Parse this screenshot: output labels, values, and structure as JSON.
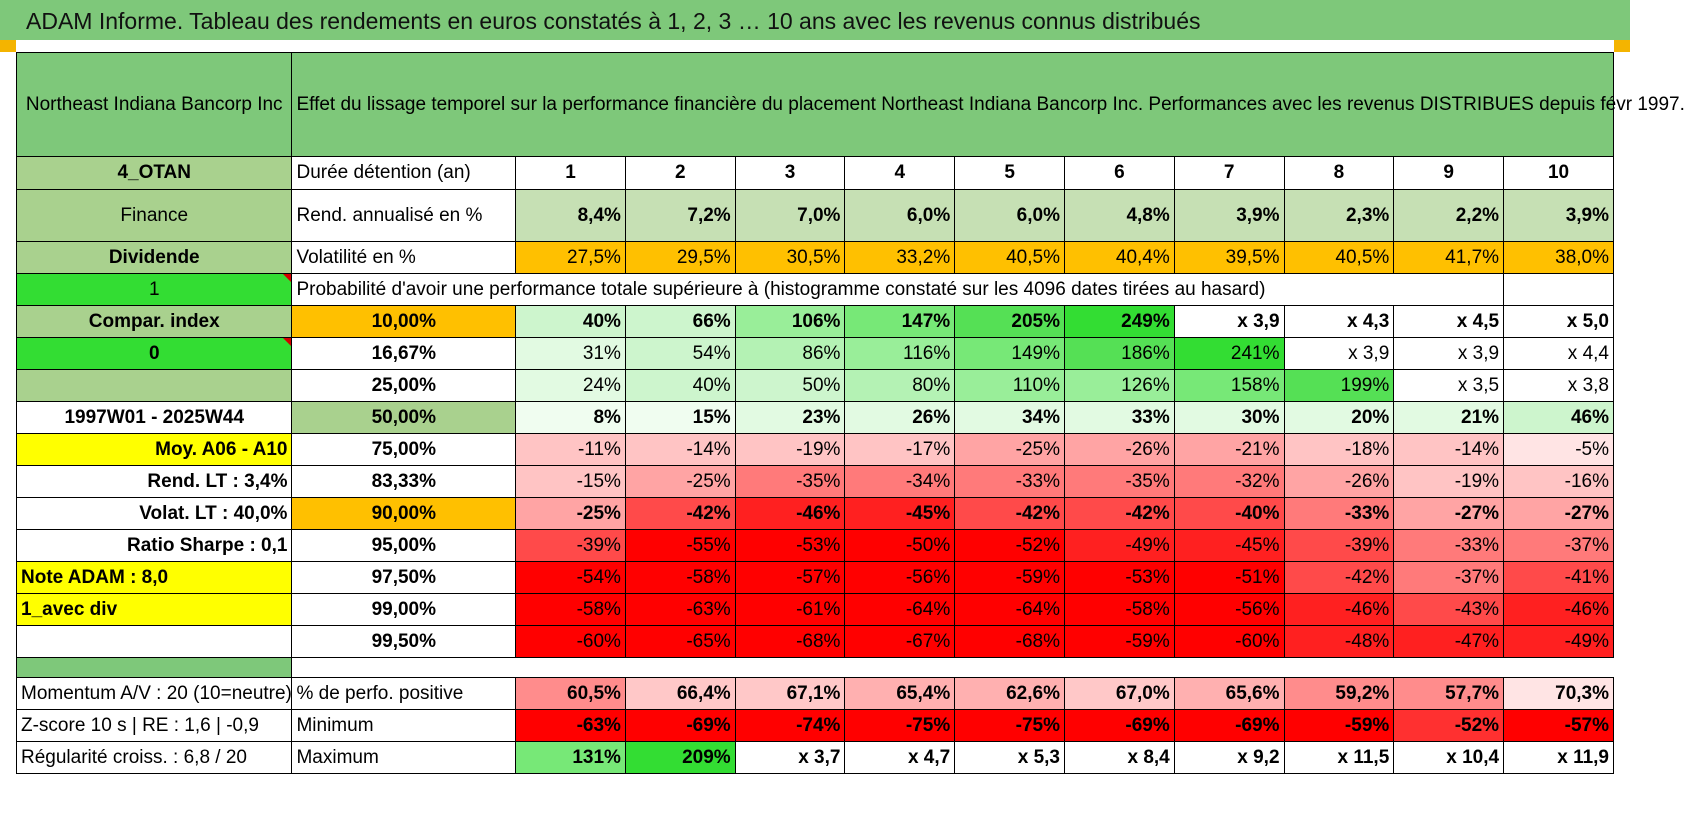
{
  "header": {
    "title": "ADAM Informe. Tableau des rendements en euros constatés à 1, 2, 3 … 10 ans avec les revenus connus distribués"
  },
  "company": {
    "name": "Northeast Indiana Bancorp Inc",
    "description": "Effet du lissage temporel sur la performance financière du placement Northeast Indiana Bancorp Inc. Performances avec les revenus DISTRIBUES depuis févr 1997."
  },
  "side": {
    "code": "4_OTAN",
    "sector": "Finance",
    "type": "Dividende",
    "flag1": "1",
    "compar": "Compar. index",
    "flag0": "0",
    "period": "1997W01 - 2025W44",
    "moy": "Moy. A06 - A10",
    "rend_lt": "Rend. LT :   3,4%",
    "volat_lt": "Volat. LT :   40,0%",
    "sharpe": "Ratio Sharpe :   0,1",
    "note": "Note ADAM : 8,0",
    "avec_div": "1_avec div"
  },
  "labels": {
    "duree": "Durée détention (an)",
    "rend": "Rend. annualisé en %",
    "vol": "Volatilité en %",
    "proba": "Probabilité d'avoir une performance totale supérieure à (histogramme constaté sur les 4096 dates tirées au hasard)"
  },
  "years": [
    "1",
    "2",
    "3",
    "4",
    "5",
    "6",
    "7",
    "8",
    "9",
    "10"
  ],
  "rend": [
    "8,4%",
    "7,2%",
    "7,0%",
    "6,0%",
    "6,0%",
    "4,8%",
    "3,9%",
    "2,3%",
    "2,2%",
    "3,9%"
  ],
  "vol": [
    "27,5%",
    "29,5%",
    "30,5%",
    "33,2%",
    "40,5%",
    "40,4%",
    "39,5%",
    "40,5%",
    "41,7%",
    "38,0%"
  ],
  "prob_rows": [
    {
      "p": "10,00%",
      "vals": [
        "40%",
        "66%",
        "106%",
        "147%",
        "205%",
        "249%",
        "x 3,9",
        "x 4,3",
        "x 4,5",
        "x 5,0"
      ]
    },
    {
      "p": "16,67%",
      "vals": [
        "31%",
        "54%",
        "86%",
        "116%",
        "149%",
        "186%",
        "241%",
        "x 3,9",
        "x 3,9",
        "x 4,4"
      ]
    },
    {
      "p": "25,00%",
      "vals": [
        "24%",
        "40%",
        "50%",
        "80%",
        "110%",
        "126%",
        "158%",
        "199%",
        "x 3,5",
        "x 3,8"
      ]
    },
    {
      "p": "50,00%",
      "vals": [
        "8%",
        "15%",
        "23%",
        "26%",
        "34%",
        "33%",
        "30%",
        "20%",
        "21%",
        "46%"
      ]
    },
    {
      "p": "75,00%",
      "vals": [
        "-11%",
        "-14%",
        "-19%",
        "-17%",
        "-25%",
        "-26%",
        "-21%",
        "-18%",
        "-14%",
        "-5%"
      ]
    },
    {
      "p": "83,33%",
      "vals": [
        "-15%",
        "-25%",
        "-35%",
        "-34%",
        "-33%",
        "-35%",
        "-32%",
        "-26%",
        "-19%",
        "-16%"
      ]
    },
    {
      "p": "90,00%",
      "vals": [
        "-25%",
        "-42%",
        "-46%",
        "-45%",
        "-42%",
        "-42%",
        "-40%",
        "-33%",
        "-27%",
        "-27%"
      ]
    },
    {
      "p": "95,00%",
      "vals": [
        "-39%",
        "-55%",
        "-53%",
        "-50%",
        "-52%",
        "-49%",
        "-45%",
        "-39%",
        "-33%",
        "-37%"
      ]
    },
    {
      "p": "97,50%",
      "vals": [
        "-54%",
        "-58%",
        "-57%",
        "-56%",
        "-59%",
        "-53%",
        "-51%",
        "-42%",
        "-37%",
        "-41%"
      ]
    },
    {
      "p": "99,00%",
      "vals": [
        "-58%",
        "-63%",
        "-61%",
        "-64%",
        "-64%",
        "-58%",
        "-56%",
        "-46%",
        "-43%",
        "-46%"
      ]
    },
    {
      "p": "99,50%",
      "vals": [
        "-60%",
        "-65%",
        "-68%",
        "-67%",
        "-68%",
        "-59%",
        "-60%",
        "-48%",
        "-47%",
        "-49%"
      ]
    }
  ],
  "bottom": [
    {
      "left": "Momentum A/V : 20 (10=neutre)",
      "label": "% de perfo. positive",
      "vals": [
        "60,5%",
        "66,4%",
        "67,1%",
        "65,4%",
        "62,6%",
        "67,0%",
        "65,6%",
        "59,2%",
        "57,7%",
        "70,3%"
      ]
    },
    {
      "left": "Z-score 10 s | RE : 1,6 | -0,9",
      "label": "Minimum",
      "vals": [
        "-63%",
        "-69%",
        "-74%",
        "-75%",
        "-75%",
        "-69%",
        "-69%",
        "-59%",
        "-52%",
        "-57%"
      ]
    },
    {
      "left": "Régularité croiss. : 6,8 / 20",
      "label": "Maximum",
      "vals": [
        "131%",
        "209%",
        "x 3,7",
        "x 4,7",
        "x 5,3",
        "x 8,4",
        "x 9,2",
        "x 11,5",
        "x 10,4",
        "x 11,9"
      ]
    }
  ],
  "colors": {
    "header_green": "#7ec87a",
    "orange": "#ffc000",
    "yellow": "#ffff00",
    "red_text": "#d40000"
  }
}
